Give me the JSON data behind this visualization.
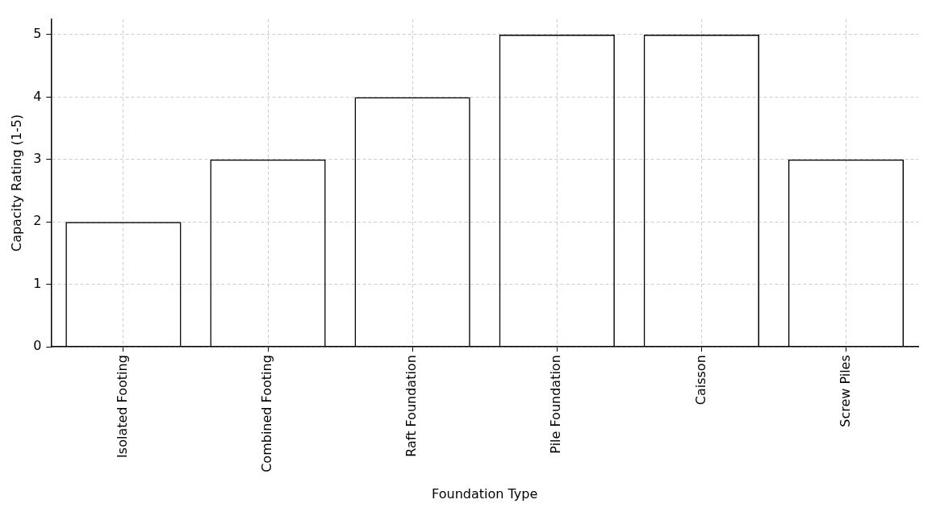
{
  "chart_data": {
    "type": "bar",
    "xlabel": "Foundation Type",
    "ylabel": "Capacity Rating (1-5)",
    "categories": [
      "Isolated Footing",
      "Combined Footing",
      "Raft Foundation",
      "Pile Foundation",
      "Caisson",
      "Screw Piles"
    ],
    "values": [
      2,
      3,
      4,
      5,
      5,
      3
    ],
    "color": "#000000",
    "ylim": [
      0,
      5.25
    ],
    "yticks": [
      0,
      1,
      2,
      3,
      4,
      5
    ],
    "grid": true
  }
}
